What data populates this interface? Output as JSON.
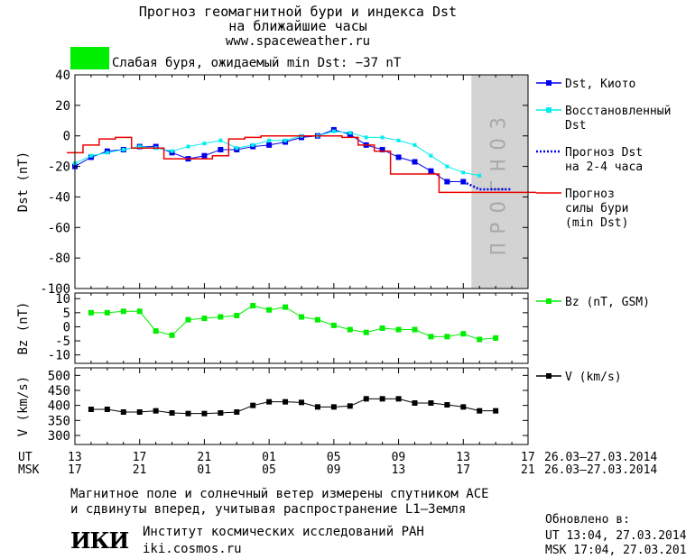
{
  "header": {
    "title_line1": "Прогноз геомагнитной бури и индекса Dst",
    "title_line2": "на ближайшие часы",
    "url": "www.spaceweather.ru",
    "status_color": "#00ee00",
    "status_text": "Слабая буря, ожидаемый min Dst: −37 nT"
  },
  "chart_data": [
    {
      "type": "line",
      "ylabel": "Dst (nT)",
      "ylim": [
        -100,
        40
      ],
      "yticks": [
        40,
        20,
        0,
        -20,
        -40,
        -60,
        -80,
        -100
      ],
      "forecast_label": "ПРОГНОЗ",
      "forecast_band_color": "#d3d3d3",
      "series": [
        {
          "name": "Dst, Киото",
          "color": "#0000ee",
          "x": [
            0,
            1,
            2,
            3,
            4,
            5,
            6,
            7,
            8,
            9,
            10,
            11,
            12,
            13,
            14,
            15,
            16,
            17,
            18,
            19,
            20,
            21,
            22,
            23,
            24
          ],
          "values": [
            -20,
            -14,
            -10,
            -9,
            -7,
            -7,
            -11,
            -15,
            -13,
            -9,
            -9,
            -7,
            -6,
            -4,
            -1,
            0,
            4,
            1,
            -6,
            -9,
            -14,
            -17,
            -23,
            -30,
            -30
          ]
        },
        {
          "name": "Восстановленный Dst",
          "color": "#00eeee",
          "x": [
            0,
            1,
            2,
            3,
            4,
            5,
            6,
            7,
            8,
            9,
            10,
            11,
            12,
            13,
            14,
            15,
            16,
            17,
            18,
            19,
            20,
            21,
            22,
            23,
            24,
            25
          ],
          "values": [
            -18,
            -13,
            -11,
            -9,
            -7,
            -8,
            -10,
            -7,
            -5,
            -3,
            -8,
            -6,
            -3,
            -3,
            0,
            0,
            3,
            2,
            -1,
            -1,
            -3,
            -6,
            -13,
            -20,
            -24,
            -26
          ]
        },
        {
          "name": "Прогноз Dst на 2-4 часа",
          "color": "#0000ee",
          "x": [
            24,
            25,
            26,
            27
          ],
          "values": [
            -30,
            -35,
            -35,
            -35
          ]
        },
        {
          "name": "Прогноз силы бури (min Dst)",
          "color": "#ee0000",
          "x": [
            -0.5,
            0.5,
            1.5,
            2.5,
            3.5,
            4.5,
            5.5,
            6.5,
            7.5,
            8.5,
            9.5,
            10.5,
            11.5,
            12.5,
            13.5,
            14.5,
            15.5,
            16.5,
            17.5,
            18.5,
            19.5,
            20.5,
            21.5,
            22.5,
            23.5,
            24.5,
            25.5,
            26.5,
            27.5,
            28.5
          ],
          "values": [
            -11,
            -6,
            -2,
            -1,
            -8,
            -8,
            -15,
            -15,
            -15,
            -13,
            -2,
            -1,
            0,
            0,
            0,
            0,
            0,
            -1,
            -6,
            -10,
            -25,
            -25,
            -25,
            -37,
            -37,
            -37,
            -37,
            -37,
            -37,
            -37
          ]
        }
      ]
    },
    {
      "type": "line",
      "ylabel": "Bz (nT)",
      "ylim": [
        -13,
        12
      ],
      "yticks": [
        10,
        5,
        0,
        -5,
        -10
      ],
      "series": [
        {
          "name": "Bz (nT, GSM)",
          "color": "#00ee00",
          "x": [
            1,
            2,
            3,
            4,
            5,
            6,
            7,
            8,
            9,
            10,
            11,
            12,
            13,
            14,
            15,
            16,
            17,
            18,
            19,
            20,
            21,
            22,
            23,
            24,
            25,
            26
          ],
          "values": [
            5,
            5,
            5.5,
            5.5,
            -1.5,
            -3,
            2.5,
            3,
            3.5,
            4,
            7.5,
            6,
            7,
            3.5,
            2.5,
            0.5,
            -1,
            -2,
            -0.5,
            -1,
            -1,
            -3.5,
            -3.5,
            -2.5,
            -4.5,
            -4
          ]
        }
      ]
    },
    {
      "type": "line",
      "ylabel": "V (km/s)",
      "ylim": [
        270,
        525
      ],
      "yticks": [
        500,
        450,
        400,
        350,
        300
      ],
      "series": [
        {
          "name": "V (km/s)",
          "color": "#000000",
          "x": [
            1,
            2,
            3,
            4,
            5,
            6,
            7,
            8,
            9,
            10,
            11,
            12,
            13,
            14,
            15,
            16,
            17,
            18,
            19,
            20,
            21,
            22,
            23,
            24,
            25,
            26
          ],
          "values": [
            387,
            387,
            378,
            378,
            382,
            375,
            373,
            373,
            375,
            378,
            400,
            412,
            412,
            410,
            395,
            395,
            398,
            422,
            422,
            422,
            408,
            408,
            402,
            395,
            382,
            382
          ]
        }
      ]
    }
  ],
  "axis": {
    "ut_label": "UT",
    "msk_label": "MSK",
    "ut_ticks": [
      "13",
      "17",
      "21",
      "01",
      "05",
      "09",
      "13",
      "17"
    ],
    "msk_ticks": [
      "17",
      "21",
      "01",
      "05",
      "09",
      "13",
      "17",
      "21"
    ],
    "date_range_ut": "26.03–27.03.2014",
    "date_range_msk": "26.03–27.03.2014"
  },
  "footer": {
    "note_line1": "Магнитное поле и солнечный ветер измерены спутником ACE",
    "note_line2": "и сдвинуты вперед, учитывая распространение L1–Земля",
    "logo": "ИКИ",
    "institute": "Институт космических исследований РАН",
    "site": "iki.cosmos.ru",
    "updated_label": "Обновлено в:",
    "updated_ut": "UT  13:04, 27.03.2014",
    "updated_msk": "MSK 17:04, 27.03.2014"
  }
}
